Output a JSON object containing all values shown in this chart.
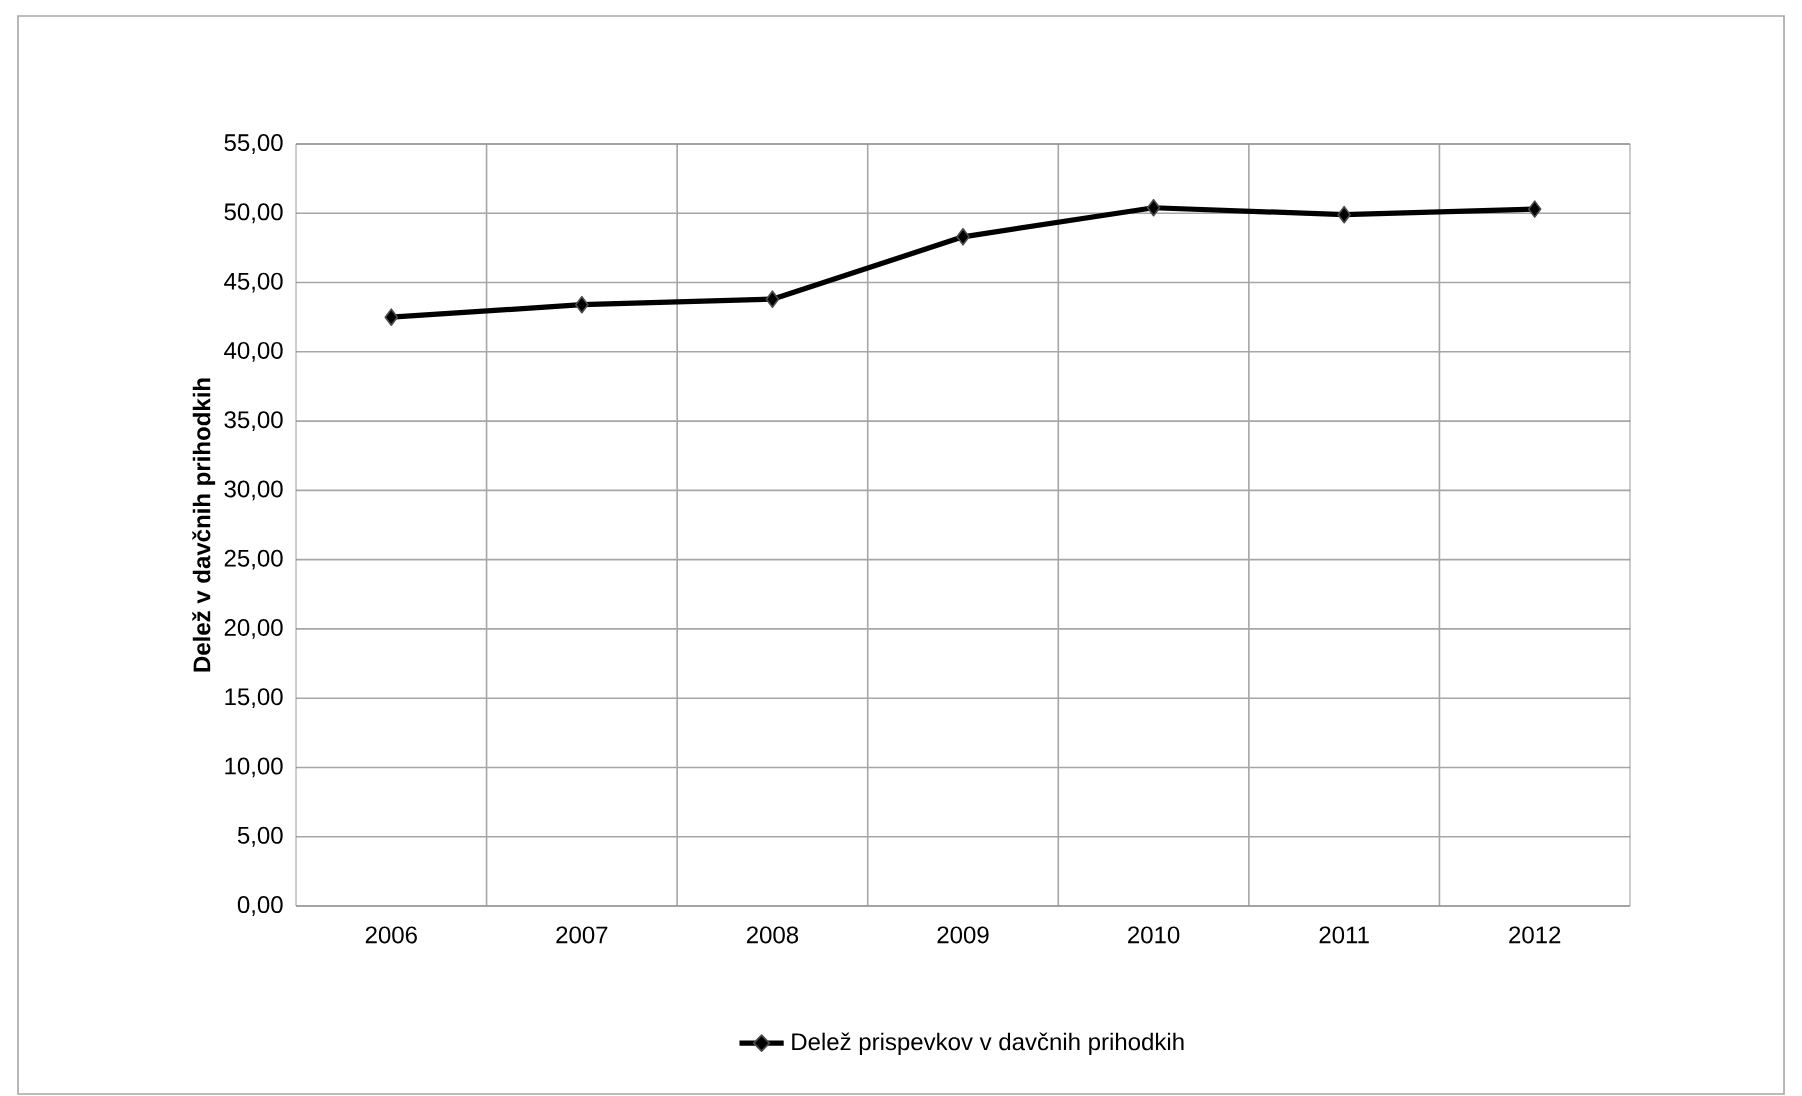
{
  "chart_data": {
    "type": "line",
    "ylabel": "Delež v davčnih prihodkih",
    "categories": [
      "2006",
      "2007",
      "2008",
      "2009",
      "2010",
      "2011",
      "2012"
    ],
    "series": [
      {
        "name": "Delež prispevkov v davčnih prihodkih",
        "color": "#000000",
        "values": [
          42.5,
          43.4,
          43.8,
          48.3,
          50.4,
          49.9,
          50.3
        ]
      }
    ],
    "ylim": [
      0,
      55
    ],
    "yticks": [
      {
        "value": 0,
        "label": "0,00"
      },
      {
        "value": 5,
        "label": "5,00"
      },
      {
        "value": 10,
        "label": "10,00"
      },
      {
        "value": 15,
        "label": "15,00"
      },
      {
        "value": 20,
        "label": "20,00"
      },
      {
        "value": 25,
        "label": "25,00"
      },
      {
        "value": 30,
        "label": "30,00"
      },
      {
        "value": 35,
        "label": "35,00"
      },
      {
        "value": 40,
        "label": "40,00"
      },
      {
        "value": 45,
        "label": "45,00"
      },
      {
        "value": 50,
        "label": "50,00"
      },
      {
        "value": 55,
        "label": "55,00"
      }
    ],
    "grid": true,
    "legend": "bottom",
    "marker": "diamond",
    "line_style": "solid"
  }
}
